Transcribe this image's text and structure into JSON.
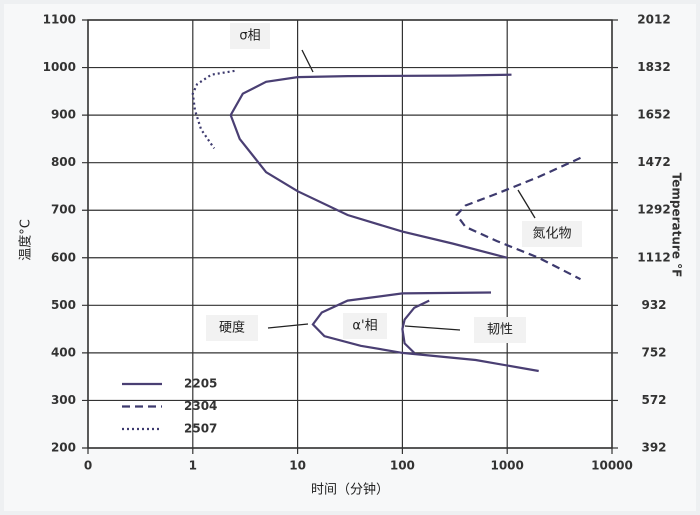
{
  "chart_data": {
    "type": "line",
    "x_label": "时间（分钟）",
    "y_label": "温度°C",
    "y2_label": "Temperature °F",
    "xscale": "log",
    "grid": true,
    "xlim": [
      0.1,
      10000
    ],
    "xticks": [
      {
        "value": 0.1,
        "label": "0"
      },
      1,
      10,
      100,
      1000,
      10000
    ],
    "ylim": [
      200,
      1100
    ],
    "yticks": [
      200,
      300,
      400,
      500,
      600,
      700,
      800,
      900,
      1000,
      1100
    ],
    "y2lim": [
      392,
      2012
    ],
    "y2ticks": [
      392,
      572,
      752,
      932,
      1112,
      1292,
      1472,
      1652,
      1832,
      2012
    ],
    "series": [
      {
        "name": "2205",
        "color": "#4a3f73",
        "dash": "solid",
        "x": [
          1100,
          300,
          30,
          10,
          5,
          3,
          2.3,
          2.8,
          5,
          10,
          30,
          100,
          300,
          1000,
          null,
          700,
          100,
          30,
          17,
          14,
          18,
          40,
          100,
          500,
          2000,
          null,
          180,
          130,
          105,
          100,
          105,
          130
        ],
        "values": [
          985,
          983,
          982,
          980,
          970,
          945,
          900,
          850,
          780,
          740,
          690,
          655,
          630,
          600,
          null,
          527,
          525,
          510,
          485,
          460,
          435,
          415,
          400,
          385,
          362,
          null,
          510,
          495,
          470,
          450,
          420,
          400
        ]
      },
      {
        "name": "2304",
        "color": "#3d3a6e",
        "dash": "dashed",
        "x": [
          5000,
          2000,
          800,
          400,
          330,
          400,
          800,
          2000,
          5000
        ],
        "values": [
          810,
          770,
          735,
          710,
          690,
          665,
          635,
          600,
          555
        ]
      },
      {
        "name": "2507",
        "color": "#3d3a6e",
        "dash": "dotted",
        "x": [
          2.5,
          1.5,
          1.1,
          1.0,
          1.05,
          1.2,
          1.6
        ],
        "values": [
          993,
          985,
          965,
          945,
          910,
          870,
          830
        ]
      }
    ],
    "annotations": [
      "σ相",
      "氮化物",
      "硬度",
      "α'相",
      "韧性"
    ]
  }
}
